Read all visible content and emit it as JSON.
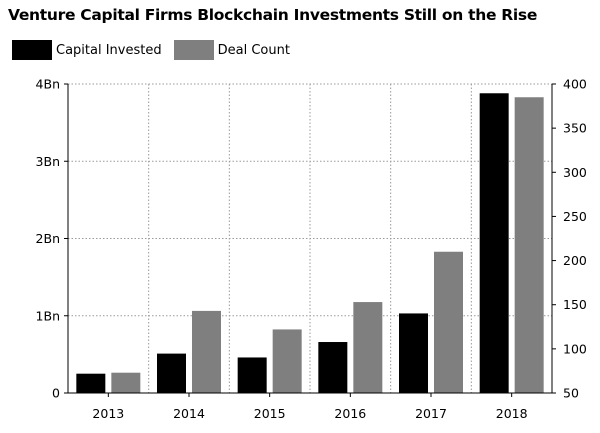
{
  "colors": {
    "capital": "#000000",
    "deals": "#7f7f7f",
    "grid": "#9a9a9a"
  },
  "chart_data": {
    "type": "bar",
    "title": "Venture Capital Firms Blockchain Investments Still on the Rise",
    "categories": [
      "2013",
      "2014",
      "2015",
      "2016",
      "2017",
      "2018"
    ],
    "series": [
      {
        "name": "Capital Invested",
        "axis": "left",
        "values": [
          0.25,
          0.51,
          0.46,
          0.66,
          1.03,
          3.88
        ]
      },
      {
        "name": "Deal Count",
        "axis": "right",
        "values": [
          73,
          143,
          122,
          153,
          210,
          385
        ]
      }
    ],
    "y_left": {
      "ylim": [
        0,
        4
      ],
      "ticks": [
        0,
        1,
        2,
        3,
        4
      ],
      "tick_labels": [
        "0",
        "1Bn",
        "2Bn",
        "3Bn",
        "4Bn"
      ]
    },
    "y_right": {
      "ylim": [
        50,
        400
      ],
      "ticks": [
        50,
        100,
        150,
        200,
        250,
        300,
        350,
        400
      ],
      "tick_labels": [
        "50",
        "100",
        "150",
        "200",
        "250",
        "300",
        "350",
        "400"
      ]
    },
    "grid": true,
    "legend_position": "top-left"
  }
}
